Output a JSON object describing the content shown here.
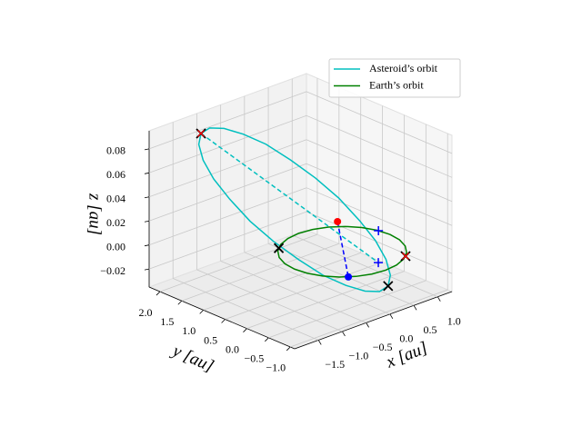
{
  "chart_data": {
    "type": "line3d",
    "xlabel": "x [au]",
    "ylabel": "y [au]",
    "zlabel": "z [au]",
    "xlim": [
      -2.0,
      1.3
    ],
    "ylim": [
      -1.1,
      2.25
    ],
    "zlim": [
      -0.035,
      0.095
    ],
    "xticks": [
      {
        "value": -1.5,
        "label": "−1.5"
      },
      {
        "value": -1.0,
        "label": "−1.0"
      },
      {
        "value": -0.5,
        "label": "−0.5"
      },
      {
        "value": 0,
        "label": "0.0"
      },
      0.5,
      {
        "value": 1.0,
        "label": "1.0"
      }
    ],
    "yticks": [
      {
        "value": -1.0,
        "label": "−1.0"
      },
      {
        "value": -0.5,
        "label": "−0.5"
      },
      {
        "value": 0,
        "label": "0.0"
      },
      0.5,
      {
        "value": 1.0,
        "label": "1.0"
      },
      1.5,
      {
        "value": 2.0,
        "label": "2.0"
      }
    ],
    "zticks": [
      {
        "value": -0.02,
        "label": "−0.02"
      },
      {
        "value": 0,
        "label": "0.00"
      },
      0.02,
      0.04,
      0.06,
      0.08
    ],
    "grid": true,
    "legend": "upper right",
    "series": [
      {
        "name": "Asteroid’s orbit",
        "color": "#00bfbf",
        "x": [
          -1.198,
          -0.89,
          -0.548,
          -0.195,
          0.146,
          0.451,
          0.7,
          0.875,
          0.964,
          0.961,
          0.868,
          0.69,
          0.438,
          0.13,
          -0.212,
          -0.565,
          -0.906,
          -1.211,
          -1.46,
          -1.635,
          -1.724,
          -1.721,
          -1.628,
          -1.45,
          -1.198
        ],
        "y": [
          1.936,
          2.075,
          2.119,
          2.065,
          1.917,
          1.684,
          1.383,
          1.034,
          0.661,
          0.289,
          -0.055,
          -0.351,
          -0.576,
          -0.715,
          -0.759,
          -0.705,
          -0.557,
          -0.324,
          -0.023,
          0.326,
          0.699,
          1.071,
          1.415,
          1.711,
          1.936
        ],
        "z": [
          0.086,
          0.084,
          0.078,
          0.069,
          0.058,
          0.044,
          0.03,
          0.016,
          0.002,
          -0.009,
          -0.018,
          -0.024,
          -0.026,
          -0.024,
          -0.018,
          -0.009,
          0.002,
          0.016,
          0.03,
          0.044,
          0.058,
          0.069,
          0.078,
          0.084,
          0.086
        ]
      },
      {
        "name": "Earth’s orbit",
        "color": "#008000",
        "x": [
          1,
          0.966,
          0.866,
          0.707,
          0.5,
          0.259,
          0,
          -0.259,
          -0.5,
          -0.707,
          -0.866,
          -0.966,
          -1,
          -0.966,
          -0.866,
          -0.707,
          -0.5,
          -0.259,
          0,
          0.259,
          0.5,
          0.707,
          0.866,
          0.966,
          1
        ],
        "y": [
          0,
          0.259,
          0.5,
          0.707,
          0.866,
          0.966,
          1,
          0.966,
          0.866,
          0.707,
          0.5,
          0.259,
          0,
          -0.259,
          -0.5,
          -0.707,
          -0.866,
          -0.966,
          -1,
          -0.966,
          -0.866,
          -0.707,
          -0.5,
          -0.259,
          0
        ],
        "z": [
          0,
          0,
          0,
          0,
          0,
          0,
          0,
          0,
          0,
          0,
          0,
          0,
          0,
          0,
          0,
          0,
          0,
          0,
          0,
          0,
          0,
          0,
          0,
          0,
          0
        ]
      }
    ],
    "lines": [
      {
        "color": "#00bfbf",
        "style": "dashed",
        "x": [
          -1.198,
          0.12
        ],
        "y": [
          1.936,
          -0.7
        ],
        "z": [
          0.086,
          0
        ]
      },
      {
        "color": "#0000ff",
        "style": "dashed",
        "x": [
          0.43,
          -0.6
        ],
        "y": [
          0.58,
          -0.8
        ],
        "z": [
          0.01,
          0
        ]
      }
    ],
    "markers": [
      {
        "x": -1.198,
        "y": 1.936,
        "z": 0.086,
        "symbol": "x",
        "color": "#000000"
      },
      {
        "x": -1.198,
        "y": 1.936,
        "z": 0.086,
        "symbol": "x",
        "color": "#ff0000"
      },
      {
        "x": 0.438,
        "y": -0.576,
        "z": -0.026,
        "symbol": "x",
        "color": "#000000"
      },
      {
        "x": -0.62,
        "y": 0.78,
        "z": 0,
        "symbol": "x",
        "color": "#000000"
      },
      {
        "x": 0.6,
        "y": -0.8,
        "z": 0,
        "symbol": "x",
        "color": "#000000"
      },
      {
        "x": 0.6,
        "y": -0.8,
        "z": 0,
        "symbol": "x",
        "color": "#ff0000"
      },
      {
        "x": 0.97,
        "y": 0.23,
        "z": 0,
        "symbol": "+",
        "color": "#0000ff"
      },
      {
        "x": 0.12,
        "y": -0.7,
        "z": 0,
        "symbol": "+",
        "color": "#0000ff"
      },
      {
        "x": 0.43,
        "y": 0.58,
        "z": 0.01,
        "symbol": "o",
        "color": "#ff0000"
      },
      {
        "x": -0.6,
        "y": -0.8,
        "z": 0,
        "symbol": "o",
        "color": "#0000ff"
      }
    ]
  }
}
